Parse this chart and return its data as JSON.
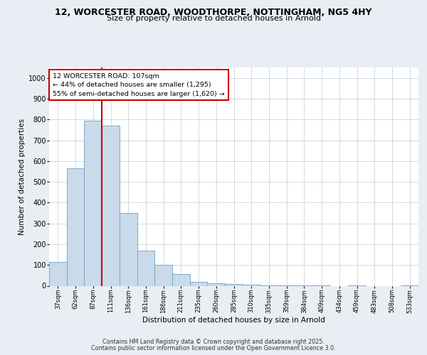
{
  "title_line1": "12, WORCESTER ROAD, WOODTHORPE, NOTTINGHAM, NG5 4HY",
  "title_line2": "Size of property relative to detached houses in Arnold",
  "xlabel": "Distribution of detached houses by size in Arnold",
  "ylabel": "Number of detached properties",
  "categories": [
    "37sqm",
    "62sqm",
    "87sqm",
    "111sqm",
    "136sqm",
    "161sqm",
    "186sqm",
    "211sqm",
    "235sqm",
    "260sqm",
    "285sqm",
    "310sqm",
    "335sqm",
    "359sqm",
    "384sqm",
    "409sqm",
    "434sqm",
    "459sqm",
    "483sqm",
    "508sqm",
    "533sqm"
  ],
  "values": [
    115,
    565,
    795,
    770,
    350,
    168,
    100,
    55,
    18,
    13,
    8,
    5,
    3,
    2,
    1,
    1,
    0,
    1,
    0,
    0,
    1
  ],
  "bar_color": "#c9daea",
  "bar_edge_color": "#7aaac8",
  "red_line_color": "#cc0000",
  "red_line_x": 2.5,
  "annotation_label": "12 WORCESTER ROAD: 107sqm",
  "annotation_line2": "← 44% of detached houses are smaller (1,295)",
  "annotation_line3": "55% of semi-detached houses are larger (1,620) →",
  "annotation_box_color": "#ffffff",
  "annotation_box_edge": "#cc0000",
  "ylim": [
    0,
    1050
  ],
  "yticks": [
    0,
    100,
    200,
    300,
    400,
    500,
    600,
    700,
    800,
    900,
    1000
  ],
  "footer_line1": "Contains HM Land Registry data © Crown copyright and database right 2025.",
  "footer_line2": "Contains public sector information licensed under the Open Government Licence 3.0.",
  "bg_color": "#e8eef4",
  "plot_bg_color": "#ffffff",
  "grid_color": "#c0ccd8"
}
